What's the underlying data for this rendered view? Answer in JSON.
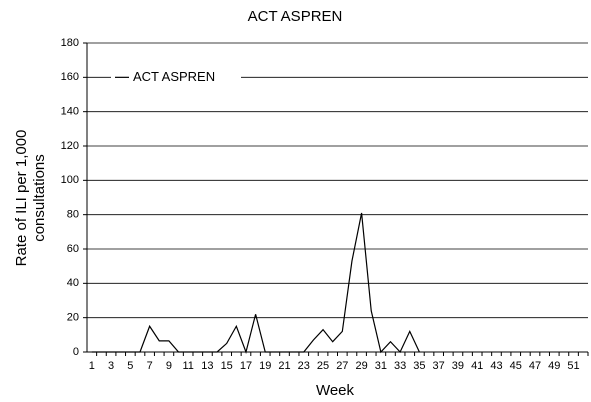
{
  "chart_data": {
    "type": "line",
    "title": "ACT ASPREN",
    "xlabel": "Week",
    "ylabel": [
      "Rate of ILI per 1,000",
      "consultations"
    ],
    "categories": [
      "1",
      null,
      "3",
      null,
      "5",
      null,
      "7",
      null,
      "9",
      null,
      "11",
      null,
      "13",
      null,
      "15",
      null,
      "17",
      null,
      "19",
      null,
      "21",
      null,
      "23",
      null,
      "25",
      null,
      "27",
      null,
      "29",
      null,
      "31",
      null,
      "33",
      null,
      "35",
      null,
      "37",
      null,
      "39",
      null,
      "41",
      null,
      "43",
      null,
      "45",
      null,
      "47",
      null,
      "49",
      null,
      "51",
      null
    ],
    "series": [
      {
        "name": "ACT ASPREN",
        "color": "#000000",
        "values": [
          0,
          0,
          0,
          0,
          0,
          0,
          15,
          6.5,
          6.5,
          0,
          0,
          0,
          0,
          0,
          5,
          15,
          0,
          22,
          0,
          0,
          0,
          0,
          0,
          7,
          13,
          6,
          12,
          53,
          81,
          24,
          0,
          6,
          0,
          12,
          0,
          null,
          null,
          null,
          null,
          null,
          null,
          null,
          null,
          null,
          null,
          null,
          null,
          null,
          null,
          null,
          null,
          null
        ]
      }
    ],
    "ylim": [
      0,
      180
    ],
    "yticks": [
      0,
      20,
      40,
      60,
      80,
      100,
      120,
      140,
      160,
      180
    ],
    "grid": true,
    "legend": "upper left"
  }
}
